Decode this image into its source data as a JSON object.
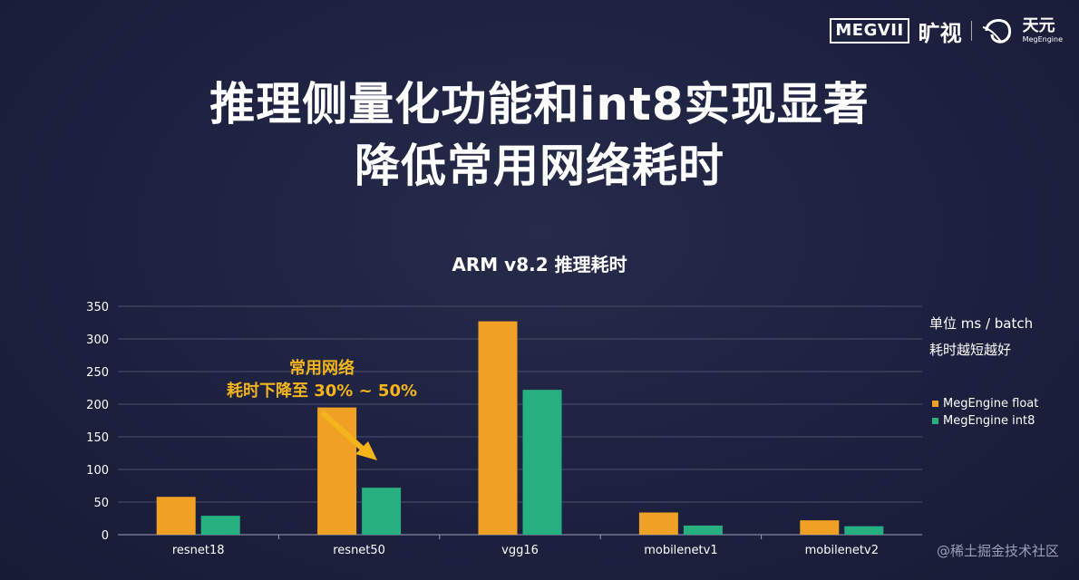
{
  "header": {
    "brand_box": "MEGVII",
    "brand_cn": "旷视",
    "engine_cn": "天元",
    "engine_en": "MegEngine"
  },
  "slide": {
    "title_line1": "推理侧量化功能和int8实现显著",
    "title_line2": "降低常用网络耗时"
  },
  "annotations": {
    "unit": "单位 ms / batch",
    "note": "耗时越短越好",
    "callout_line1": "常用网络",
    "callout_line2": "耗时下降至 30% ~ 50%"
  },
  "watermark": "@稀土掘金技术社区",
  "colors": {
    "float": "#f0a025",
    "int8": "#27b07f",
    "callout": "#f5b41a"
  },
  "chart_data": {
    "type": "bar",
    "title": "ARM v8.2 推理耗时",
    "categories": [
      "resnet18",
      "resnet50",
      "vgg16",
      "mobilenetv1",
      "mobilenetv2"
    ],
    "series": [
      {
        "name": "MegEngine float",
        "values": [
          58,
          195,
          327,
          34,
          22
        ]
      },
      {
        "name": "MegEngine int8",
        "values": [
          29,
          72,
          222,
          14,
          13
        ]
      }
    ],
    "yticks": [
      0,
      50,
      100,
      150,
      200,
      250,
      300,
      350
    ],
    "ylim": [
      0,
      350
    ],
    "grid": true,
    "legend": "right"
  }
}
